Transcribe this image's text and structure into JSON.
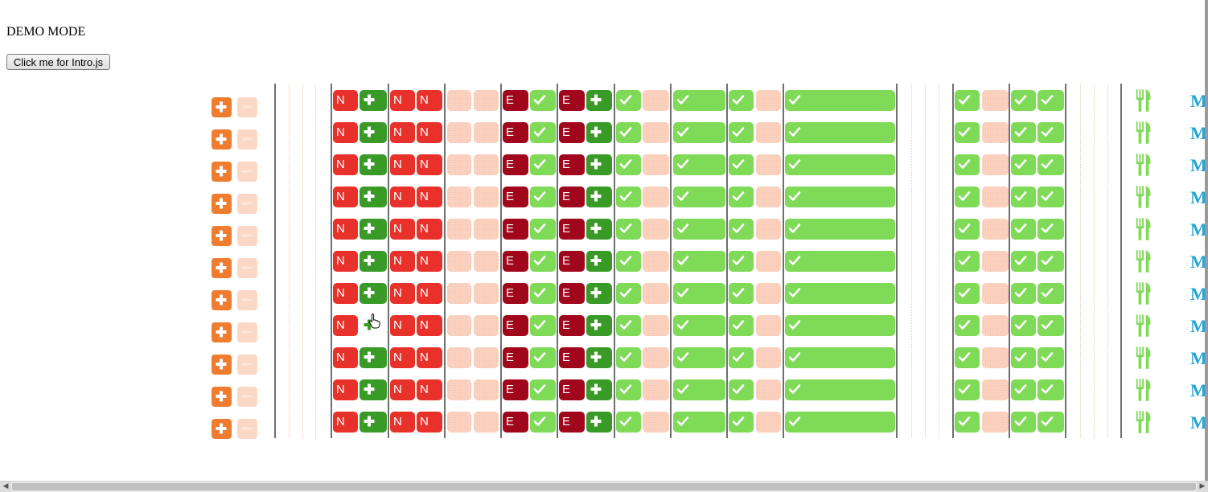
{
  "demo_label": "DEMO MODE",
  "intro_button_label": "Click me for Intro.js",
  "row_count": 11,
  "row_template": [
    {
      "type": "red",
      "letter": "N"
    },
    {
      "type": "green",
      "icon": "plus-icon"
    },
    {
      "type": "red",
      "letter": "N"
    },
    {
      "type": "red",
      "letter": "N"
    },
    {
      "type": "peach"
    },
    {
      "type": "peach"
    },
    {
      "type": "dark",
      "letter": "E"
    },
    {
      "type": "lgreen",
      "icon": "check-icon"
    },
    {
      "type": "dark",
      "letter": "E"
    },
    {
      "type": "green",
      "icon": "plus-icon"
    },
    {
      "type": "lgreen",
      "icon": "check-icon"
    },
    {
      "type": "peach"
    },
    {
      "type": "lgreen",
      "icon": "check-icon"
    },
    {
      "type": "lgreen",
      "icon": "check-icon"
    },
    {
      "type": "peach"
    },
    {
      "type": "lgreen",
      "icon": "check-icon"
    },
    {
      "type": "lgreen",
      "icon": "check-icon"
    },
    {
      "type": "peach"
    },
    {
      "type": "lgreen",
      "icon": "check-icon"
    },
    {
      "type": "lgreen",
      "icon": "check-icon"
    }
  ],
  "row_overrides": {
    "7": {
      "1": {
        "type": "peach-hover",
        "icon": "plus-icon"
      }
    }
  },
  "row_end_text": "M",
  "colors": {
    "red": "#e8312a",
    "dark_red": "#a0061c",
    "green": "#3a9a27",
    "light_green": "#7fda58",
    "peach": "#fbd2c0",
    "orange": "#ef7c2f",
    "link_blue": "#22a6d5"
  },
  "icons": {
    "add_row": "plus-icon",
    "remove_row": "minus-icon",
    "meal": "fork-knife-icon",
    "cursor": "hand-pointer-icon"
  }
}
